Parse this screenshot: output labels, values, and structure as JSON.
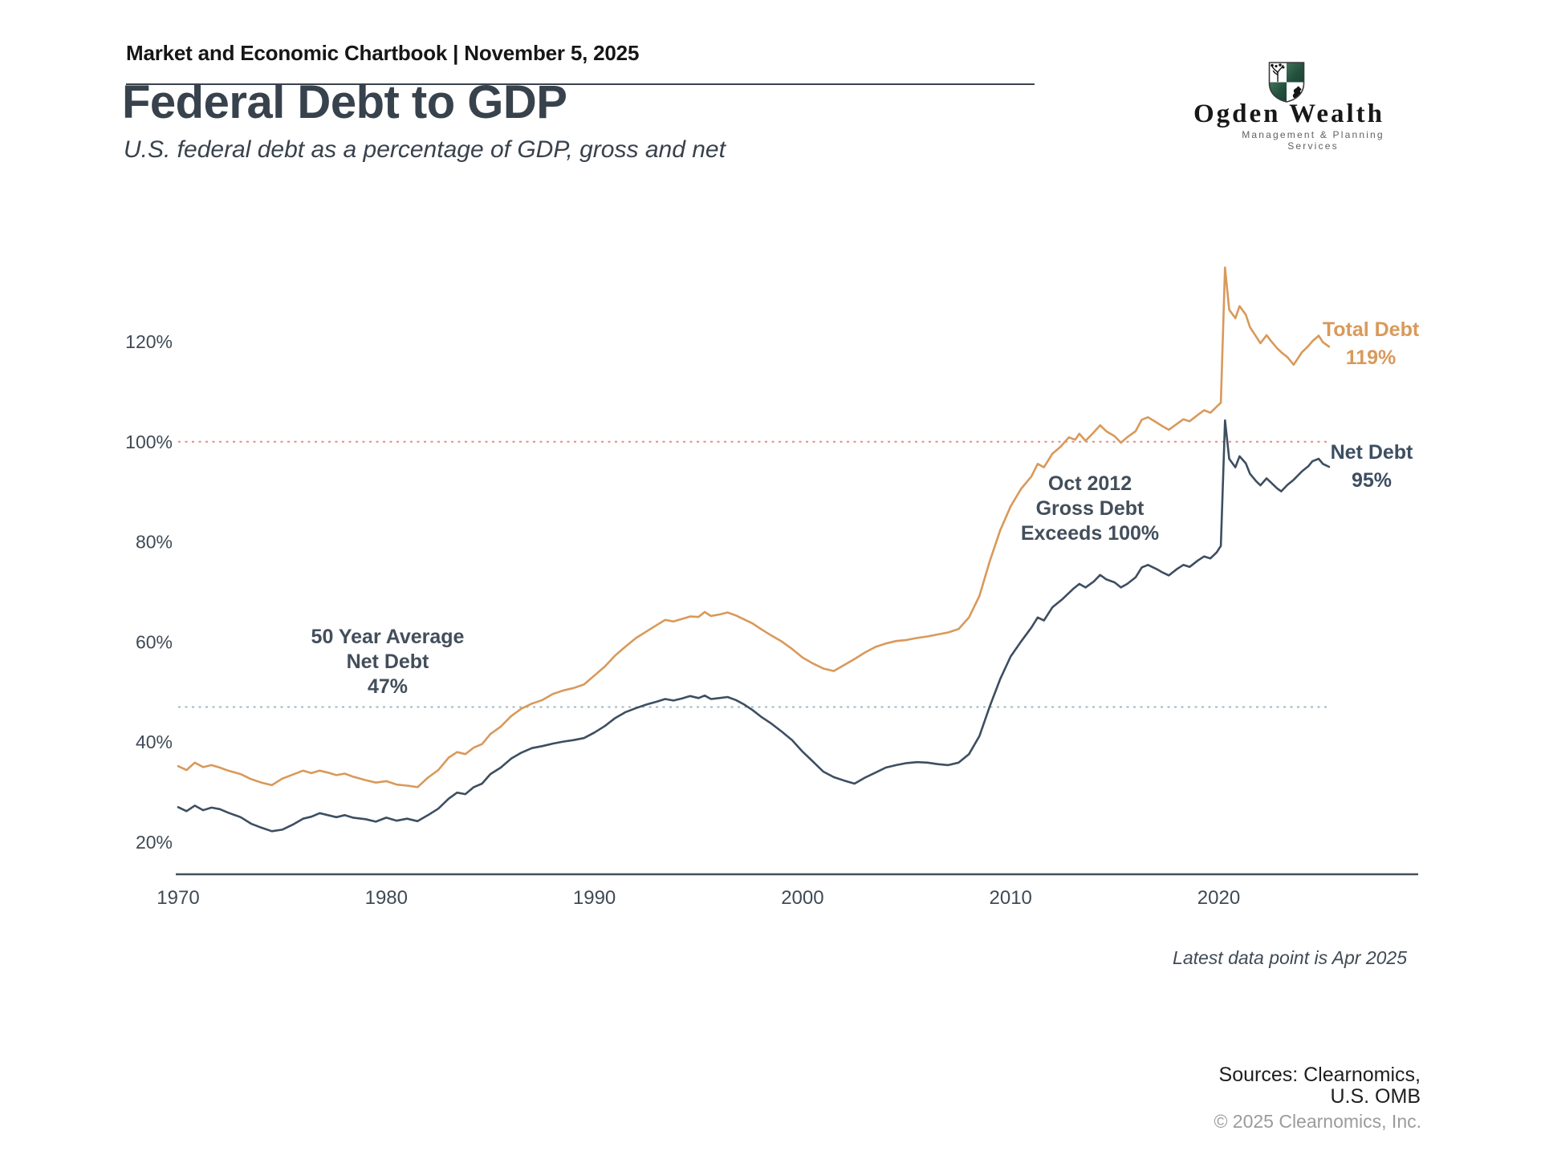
{
  "header": {
    "text": "Market and Economic Chartbook | November 5, 2025"
  },
  "logo": {
    "name": "Ogden Wealth",
    "tagline": "Management & Planning Services"
  },
  "page": {
    "title": "Federal Debt to GDP",
    "subtitle": "U.S. federal debt as a percentage of GDP, gross and net"
  },
  "footnote": "Latest data point is Apr 2025",
  "footer": {
    "sources_line1": "Sources: Clearnomics,",
    "sources_line2": "U.S. OMB",
    "copyright": "© 2025 Clearnomics, Inc."
  },
  "colors": {
    "total_debt": "#d9995a",
    "net_debt": "#3d4e61",
    "reference_100": "#e58a8a",
    "reference_47": "#9fb9c2",
    "axis": "#46505c",
    "text": "#3f4a55"
  },
  "chart_data": {
    "type": "line",
    "title": "Federal Debt to GDP",
    "subtitle": "U.S. federal debt as a percentage of GDP, gross and net",
    "xlabel": "",
    "ylabel": "",
    "grid": false,
    "legend_position": "inline-right",
    "x_ticks": [
      "1970",
      "1980",
      "1990",
      "2000",
      "2010",
      "2020"
    ],
    "x_tick_values": [
      1970,
      1980,
      1990,
      2000,
      2010,
      2020
    ],
    "y_ticks": [
      "20%",
      "40%",
      "60%",
      "80%",
      "100%",
      "120%"
    ],
    "y_tick_values": [
      20,
      40,
      60,
      80,
      100,
      120
    ],
    "xlim": [
      1970,
      2029.6
    ],
    "ylim": [
      13.6,
      140
    ],
    "reference_lines": [
      {
        "name": "gross-debt-100pct",
        "label": "Gross Debt Exceeds 100%",
        "value": 100,
        "color": "#e58a8a"
      },
      {
        "name": "net-debt-50yr-average",
        "label": "50 Year Average Net Debt 47%",
        "value": 47,
        "color": "#9fb9c2"
      }
    ],
    "annotations": [
      {
        "line1": "Oct 2012",
        "line2": "Gross Debt",
        "line3": "Exceeds 100%"
      },
      {
        "line1": "50 Year Average",
        "line2": "Net Debt",
        "line3": "47%"
      }
    ],
    "series": [
      {
        "name": "Total Debt",
        "latest_value_label": "119%",
        "color": "#d9995a",
        "points": [
          [
            1970,
            35.2
          ],
          [
            1970.4,
            34.4
          ],
          [
            1970.8,
            35.9
          ],
          [
            1971.2,
            35.0
          ],
          [
            1971.6,
            35.4
          ],
          [
            1972,
            34.9
          ],
          [
            1972.4,
            34.3
          ],
          [
            1973,
            33.6
          ],
          [
            1973.5,
            32.6
          ],
          [
            1974,
            31.9
          ],
          [
            1974.5,
            31.4
          ],
          [
            1975,
            32.7
          ],
          [
            1975.5,
            33.5
          ],
          [
            1976,
            34.3
          ],
          [
            1976.4,
            33.8
          ],
          [
            1976.8,
            34.3
          ],
          [
            1977.2,
            33.9
          ],
          [
            1977.6,
            33.4
          ],
          [
            1978,
            33.7
          ],
          [
            1978.4,
            33.1
          ],
          [
            1979,
            32.4
          ],
          [
            1979.5,
            31.9
          ],
          [
            1980,
            32.2
          ],
          [
            1980.5,
            31.5
          ],
          [
            1981,
            31.3
          ],
          [
            1981.5,
            31.0
          ],
          [
            1982,
            32.9
          ],
          [
            1982.5,
            34.4
          ],
          [
            1983,
            36.9
          ],
          [
            1983.4,
            38.0
          ],
          [
            1983.8,
            37.6
          ],
          [
            1984.2,
            38.9
          ],
          [
            1984.6,
            39.6
          ],
          [
            1985,
            41.6
          ],
          [
            1985.5,
            43.1
          ],
          [
            1986,
            45.2
          ],
          [
            1986.5,
            46.7
          ],
          [
            1987,
            47.7
          ],
          [
            1987.5,
            48.4
          ],
          [
            1988,
            49.6
          ],
          [
            1988.5,
            50.3
          ],
          [
            1989,
            50.8
          ],
          [
            1989.5,
            51.5
          ],
          [
            1990,
            53.3
          ],
          [
            1990.5,
            55.1
          ],
          [
            1991,
            57.3
          ],
          [
            1991.5,
            59.1
          ],
          [
            1992,
            60.8
          ],
          [
            1992.5,
            62.1
          ],
          [
            1993,
            63.4
          ],
          [
            1993.4,
            64.4
          ],
          [
            1993.8,
            64.1
          ],
          [
            1994.2,
            64.6
          ],
          [
            1994.6,
            65.1
          ],
          [
            1995,
            65.0
          ],
          [
            1995.3,
            66.0
          ],
          [
            1995.6,
            65.2
          ],
          [
            1996,
            65.5
          ],
          [
            1996.4,
            65.9
          ],
          [
            1996.8,
            65.3
          ],
          [
            1997.2,
            64.5
          ],
          [
            1997.6,
            63.7
          ],
          [
            1998,
            62.6
          ],
          [
            1998.5,
            61.3
          ],
          [
            1999,
            60.1
          ],
          [
            1999.5,
            58.6
          ],
          [
            2000,
            56.9
          ],
          [
            2000.5,
            55.7
          ],
          [
            2001,
            54.7
          ],
          [
            2001.5,
            54.2
          ],
          [
            2002,
            55.4
          ],
          [
            2002.5,
            56.6
          ],
          [
            2003,
            57.9
          ],
          [
            2003.5,
            59.0
          ],
          [
            2004,
            59.7
          ],
          [
            2004.5,
            60.2
          ],
          [
            2005,
            60.4
          ],
          [
            2005.5,
            60.8
          ],
          [
            2006,
            61.1
          ],
          [
            2006.5,
            61.5
          ],
          [
            2007,
            61.9
          ],
          [
            2007.5,
            62.6
          ],
          [
            2008,
            64.9
          ],
          [
            2008.5,
            69.2
          ],
          [
            2009,
            76.2
          ],
          [
            2009.5,
            82.3
          ],
          [
            2010,
            87.1
          ],
          [
            2010.5,
            90.6
          ],
          [
            2011,
            93.1
          ],
          [
            2011.3,
            95.6
          ],
          [
            2011.6,
            94.9
          ],
          [
            2012,
            97.6
          ],
          [
            2012.4,
            99.0
          ],
          [
            2012.8,
            100.9
          ],
          [
            2013.1,
            100.4
          ],
          [
            2013.3,
            101.6
          ],
          [
            2013.6,
            100.2
          ],
          [
            2014,
            101.9
          ],
          [
            2014.3,
            103.3
          ],
          [
            2014.6,
            102.1
          ],
          [
            2015,
            101.1
          ],
          [
            2015.3,
            99.8
          ],
          [
            2015.6,
            100.9
          ],
          [
            2016,
            102.1
          ],
          [
            2016.3,
            104.4
          ],
          [
            2016.6,
            104.9
          ],
          [
            2017,
            103.9
          ],
          [
            2017.3,
            103.1
          ],
          [
            2017.6,
            102.4
          ],
          [
            2018,
            103.6
          ],
          [
            2018.3,
            104.5
          ],
          [
            2018.6,
            104.1
          ],
          [
            2019,
            105.4
          ],
          [
            2019.3,
            106.3
          ],
          [
            2019.6,
            105.8
          ],
          [
            2019.9,
            107.0
          ],
          [
            2020.1,
            107.8
          ],
          [
            2020.3,
            134.8
          ],
          [
            2020.5,
            126.4
          ],
          [
            2020.8,
            124.7
          ],
          [
            2021,
            127.1
          ],
          [
            2021.3,
            125.4
          ],
          [
            2021.5,
            122.9
          ],
          [
            2021.8,
            121.0
          ],
          [
            2022,
            119.7
          ],
          [
            2022.3,
            121.3
          ],
          [
            2022.5,
            120.2
          ],
          [
            2022.8,
            118.7
          ],
          [
            2023,
            117.9
          ],
          [
            2023.3,
            116.9
          ],
          [
            2023.6,
            115.4
          ],
          [
            2024,
            117.9
          ],
          [
            2024.3,
            119.1
          ],
          [
            2024.5,
            120.1
          ],
          [
            2024.8,
            121.2
          ],
          [
            2025,
            119.9
          ],
          [
            2025.3,
            119.0
          ]
        ]
      },
      {
        "name": "Net Debt",
        "latest_value_label": "95%",
        "color": "#3d4e61",
        "points": [
          [
            1970,
            27.0
          ],
          [
            1970.4,
            26.2
          ],
          [
            1970.8,
            27.3
          ],
          [
            1971.2,
            26.4
          ],
          [
            1971.6,
            26.9
          ],
          [
            1972,
            26.6
          ],
          [
            1972.4,
            25.9
          ],
          [
            1973,
            25.0
          ],
          [
            1973.5,
            23.7
          ],
          [
            1974,
            22.9
          ],
          [
            1974.5,
            22.2
          ],
          [
            1975,
            22.5
          ],
          [
            1975.5,
            23.5
          ],
          [
            1976,
            24.7
          ],
          [
            1976.4,
            25.1
          ],
          [
            1976.8,
            25.8
          ],
          [
            1977.2,
            25.4
          ],
          [
            1977.6,
            25.0
          ],
          [
            1978,
            25.4
          ],
          [
            1978.4,
            24.9
          ],
          [
            1979,
            24.6
          ],
          [
            1979.5,
            24.1
          ],
          [
            1980,
            24.9
          ],
          [
            1980.5,
            24.3
          ],
          [
            1981,
            24.7
          ],
          [
            1981.5,
            24.2
          ],
          [
            1982,
            25.4
          ],
          [
            1982.5,
            26.7
          ],
          [
            1983,
            28.7
          ],
          [
            1983.4,
            29.9
          ],
          [
            1983.8,
            29.6
          ],
          [
            1984.2,
            31.0
          ],
          [
            1984.6,
            31.7
          ],
          [
            1985,
            33.6
          ],
          [
            1985.5,
            34.9
          ],
          [
            1986,
            36.7
          ],
          [
            1986.5,
            37.9
          ],
          [
            1987,
            38.8
          ],
          [
            1987.5,
            39.2
          ],
          [
            1988,
            39.7
          ],
          [
            1988.5,
            40.1
          ],
          [
            1989,
            40.4
          ],
          [
            1989.5,
            40.8
          ],
          [
            1990,
            41.9
          ],
          [
            1990.5,
            43.2
          ],
          [
            1991,
            44.8
          ],
          [
            1991.5,
            46.0
          ],
          [
            1992,
            46.8
          ],
          [
            1992.5,
            47.5
          ],
          [
            1993,
            48.1
          ],
          [
            1993.4,
            48.6
          ],
          [
            1993.8,
            48.3
          ],
          [
            1994.2,
            48.7
          ],
          [
            1994.6,
            49.2
          ],
          [
            1995,
            48.8
          ],
          [
            1995.3,
            49.3
          ],
          [
            1995.6,
            48.6
          ],
          [
            1996,
            48.8
          ],
          [
            1996.4,
            49.0
          ],
          [
            1996.8,
            48.4
          ],
          [
            1997.2,
            47.5
          ],
          [
            1997.6,
            46.4
          ],
          [
            1998,
            45.1
          ],
          [
            1998.5,
            43.7
          ],
          [
            1999,
            42.1
          ],
          [
            1999.5,
            40.4
          ],
          [
            2000,
            38.1
          ],
          [
            2000.5,
            36.1
          ],
          [
            2001,
            34.1
          ],
          [
            2001.5,
            33.0
          ],
          [
            2002,
            32.3
          ],
          [
            2002.5,
            31.7
          ],
          [
            2003,
            32.9
          ],
          [
            2003.5,
            33.9
          ],
          [
            2004,
            34.9
          ],
          [
            2004.5,
            35.4
          ],
          [
            2005,
            35.8
          ],
          [
            2005.5,
            36.0
          ],
          [
            2006,
            35.9
          ],
          [
            2006.5,
            35.6
          ],
          [
            2007,
            35.4
          ],
          [
            2007.5,
            35.9
          ],
          [
            2008,
            37.6
          ],
          [
            2008.5,
            41.2
          ],
          [
            2009,
            47.2
          ],
          [
            2009.5,
            52.6
          ],
          [
            2010,
            57.1
          ],
          [
            2010.5,
            60.1
          ],
          [
            2011,
            62.9
          ],
          [
            2011.3,
            64.9
          ],
          [
            2011.6,
            64.3
          ],
          [
            2012,
            66.9
          ],
          [
            2012.5,
            68.6
          ],
          [
            2013,
            70.6
          ],
          [
            2013.3,
            71.6
          ],
          [
            2013.6,
            70.9
          ],
          [
            2014,
            72.1
          ],
          [
            2014.3,
            73.4
          ],
          [
            2014.6,
            72.5
          ],
          [
            2015,
            71.9
          ],
          [
            2015.3,
            70.9
          ],
          [
            2015.6,
            71.6
          ],
          [
            2016,
            72.9
          ],
          [
            2016.3,
            74.9
          ],
          [
            2016.6,
            75.4
          ],
          [
            2017,
            74.6
          ],
          [
            2017.3,
            73.9
          ],
          [
            2017.6,
            73.3
          ],
          [
            2018,
            74.6
          ],
          [
            2018.3,
            75.4
          ],
          [
            2018.6,
            75.0
          ],
          [
            2019,
            76.3
          ],
          [
            2019.3,
            77.1
          ],
          [
            2019.6,
            76.7
          ],
          [
            2019.9,
            77.9
          ],
          [
            2020.1,
            79.2
          ],
          [
            2020.3,
            104.3
          ],
          [
            2020.5,
            96.6
          ],
          [
            2020.8,
            94.9
          ],
          [
            2021,
            97.1
          ],
          [
            2021.3,
            95.7
          ],
          [
            2021.5,
            93.6
          ],
          [
            2021.8,
            92.1
          ],
          [
            2022,
            91.3
          ],
          [
            2022.3,
            92.7
          ],
          [
            2022.5,
            91.9
          ],
          [
            2022.8,
            90.7
          ],
          [
            2023,
            90.1
          ],
          [
            2023.3,
            91.4
          ],
          [
            2023.6,
            92.4
          ],
          [
            2024,
            94.1
          ],
          [
            2024.3,
            95.1
          ],
          [
            2024.5,
            96.1
          ],
          [
            2024.8,
            96.6
          ],
          [
            2025,
            95.6
          ],
          [
            2025.3,
            95.0
          ]
        ]
      }
    ]
  }
}
